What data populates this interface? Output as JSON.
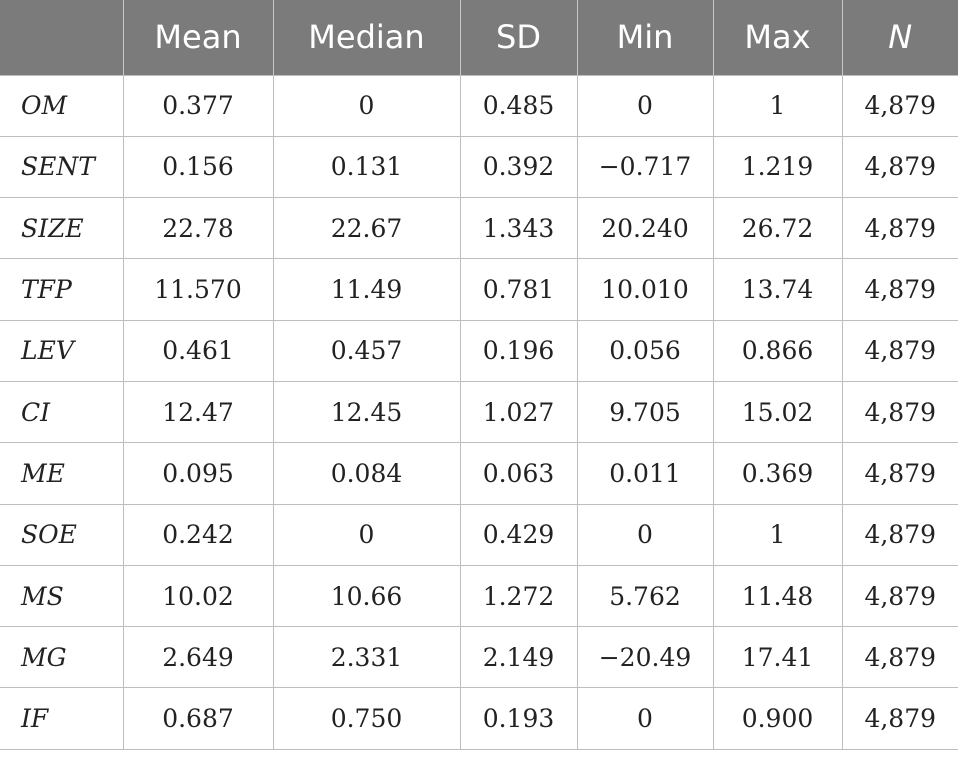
{
  "table": {
    "headers": [
      "",
      "Mean",
      "Median",
      "SD",
      "Min",
      "Max",
      "N"
    ],
    "rows": [
      {
        "label": "OM",
        "values": [
          "0.377",
          "0",
          "0.485",
          "0",
          "1",
          "4,879"
        ]
      },
      {
        "label": "SENT",
        "values": [
          "0.156",
          "0.131",
          "0.392",
          "−0.717",
          "1.219",
          "4,879"
        ]
      },
      {
        "label": "SIZE",
        "values": [
          "22.78",
          "22.67",
          "1.343",
          "20.240",
          "26.72",
          "4,879"
        ]
      },
      {
        "label": "TFP",
        "values": [
          "11.570",
          "11.49",
          "0.781",
          "10.010",
          "13.74",
          "4,879"
        ]
      },
      {
        "label": "LEV",
        "values": [
          "0.461",
          "0.457",
          "0.196",
          "0.056",
          "0.866",
          "4,879"
        ]
      },
      {
        "label": "CI",
        "values": [
          "12.47",
          "12.45",
          "1.027",
          "9.705",
          "15.02",
          "4,879"
        ]
      },
      {
        "label": "ME",
        "values": [
          "0.095",
          "0.084",
          "0.063",
          "0.011",
          "0.369",
          "4,879"
        ]
      },
      {
        "label": "SOE",
        "values": [
          "0.242",
          "0",
          "0.429",
          "0",
          "1",
          "4,879"
        ]
      },
      {
        "label": "MS",
        "values": [
          "10.02",
          "10.66",
          "1.272",
          "5.762",
          "11.48",
          "4,879"
        ]
      },
      {
        "label": "MG",
        "values": [
          "2.649",
          "2.331",
          "2.149",
          "−20.49",
          "17.41",
          "4,879"
        ]
      },
      {
        "label": "IF",
        "values": [
          "0.687",
          "0.750",
          "0.193",
          "0",
          "0.900",
          "4,879"
        ]
      }
    ]
  }
}
